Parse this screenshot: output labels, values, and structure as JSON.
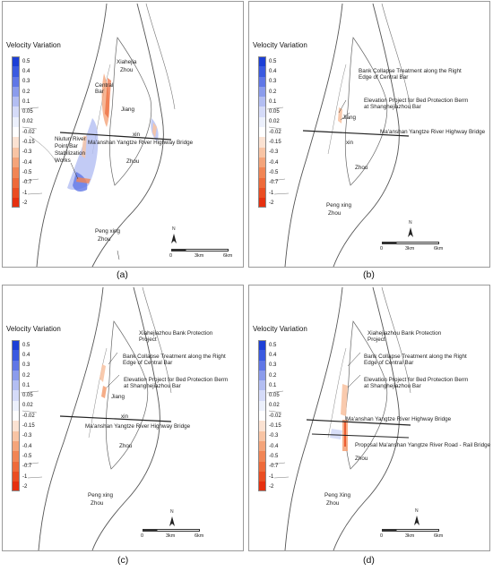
{
  "legend": {
    "title": "Velocity Variation",
    "items": [
      {
        "label": "0.5",
        "color": "#1c3fd6"
      },
      {
        "label": "0.4",
        "color": "#3a5ae0"
      },
      {
        "label": "0.3",
        "color": "#6077e6"
      },
      {
        "label": "0.2",
        "color": "#8b9cec"
      },
      {
        "label": "0.1",
        "color": "#b3bef2"
      },
      {
        "label": "0.05",
        "color": "#d5dbf8"
      },
      {
        "label": "0.02",
        "color": "#ecf0fc"
      },
      {
        "label": "-0.02",
        "color": "#ffffff"
      },
      {
        "label": "-0.15",
        "color": "#fbe2d2"
      },
      {
        "label": "-0.3",
        "color": "#f8c4a4"
      },
      {
        "label": "-0.4",
        "color": "#f4a47a"
      },
      {
        "label": "-0.5",
        "color": "#f18555"
      },
      {
        "label": "-0.7",
        "color": "#ee6a3a"
      },
      {
        "label": "-1",
        "color": "#ea4d22"
      },
      {
        "label": "-2",
        "color": "#e6300f"
      }
    ]
  },
  "scale_bar": {
    "start": "0",
    "mid": "3km",
    "end": "6km"
  },
  "north_label": "N",
  "panels": [
    {
      "caption": "(a)",
      "labels": {
        "xiahe": "Xiahejia",
        "zhou1": "Zhou",
        "central": "Central Bar",
        "jiang": "Jiang",
        "xin": "xin",
        "bridge": "Ma'anshan Yangtze River Highway Bridge",
        "niutun": "Niutun River Point Bar Stabilization Works",
        "zhou2": "Zhou",
        "pengxing": "Peng xing",
        "zhou3": "Zhou"
      }
    },
    {
      "caption": "(b)",
      "labels": {
        "collapse": "Bank Collapse Treatment along the Right Edge of Central Bar",
        "elevation": "Elevation Project for Bed Protection Berm at Shanghejiazhou Bar",
        "jiang": "Jiang",
        "bridge": "Ma'anshan Yangtze River Highway Bridge",
        "xin": "xin",
        "zhou2": "Zhou",
        "pengxing": "Peng xing",
        "zhou3": "Zhou"
      }
    },
    {
      "caption": "(c)",
      "labels": {
        "xiahejiazhou": "Xiahejiazhou Bank Protection Project",
        "collapse": "Bank Collapse Treatment along the Right Edge of Central Bar",
        "elevation": "Elevation Project for Bed Protection Berm at Shanghejiazhou Bar",
        "jiang": "Jiang",
        "xin": "xin",
        "bridge": "Ma'anshan Yangtze River Highway Bridge",
        "zhou2": "Zhou",
        "pengxing": "Peng xing",
        "zhou3": "Zhou"
      }
    },
    {
      "caption": "(d)",
      "labels": {
        "xiahejiazhou": "Xiahejiazhou Bank Protection Project",
        "collapse": "Bank Collapse Treatment along the Right Edge of Central Bar",
        "elevation": "Elevation Project for Bed Protection Berm at Shanghejiazhou Bar",
        "bridge": "Ma'anshan Yangtze River Highway Bridge",
        "railbridge": "Proposal Ma'anshan Yangtze River Road - Rail Bridge",
        "zhou2": "Zhou",
        "pengxing": "Peng Xing",
        "zhou3": "Zhou"
      }
    }
  ]
}
